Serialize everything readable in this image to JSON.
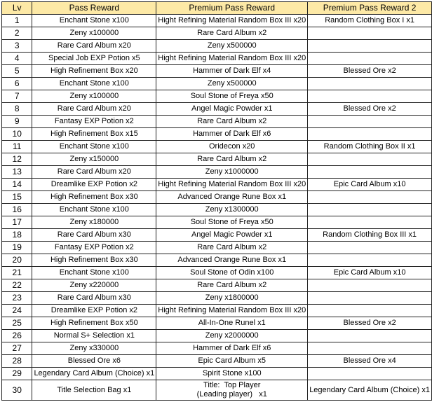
{
  "header": {
    "color": "#fde9a6",
    "columns": [
      "Lv",
      "Pass Reward",
      "Premium Pass Reward",
      "Premium Pass Reward 2"
    ]
  },
  "rows": [
    [
      "1",
      "Enchant Stone x100",
      "Hight Refining Material Random Box III x20",
      "Random Clothing Box I x1"
    ],
    [
      "2",
      "Zeny x100000",
      "Rare Card Album x2",
      ""
    ],
    [
      "3",
      "Rare Card Album x20",
      "Zeny x500000",
      ""
    ],
    [
      "4",
      "Special Job EXP Potion x5",
      "Hight Refining Material Random Box III x20",
      ""
    ],
    [
      "5",
      "High Refinement Box x20",
      "Hammer of Dark Elf x4",
      "Blessed Ore x2"
    ],
    [
      "6",
      "Enchant Stone x100",
      "Zeny x500000",
      ""
    ],
    [
      "7",
      "Zeny x100000",
      "Soul Stone of Freya x50",
      ""
    ],
    [
      "8",
      "Rare Card Album x20",
      "Angel Magic Powder x1",
      "Blessed Ore x2"
    ],
    [
      "9",
      "Fantasy EXP Potion x2",
      "Rare Card Album x2",
      ""
    ],
    [
      "10",
      "High Refinement Box x15",
      "Hammer of Dark Elf x6",
      ""
    ],
    [
      "11",
      "Enchant Stone x100",
      "Oridecon x20",
      "Random Clothing Box II x1"
    ],
    [
      "12",
      "Zeny x150000",
      "Rare Card Album x2",
      ""
    ],
    [
      "13",
      "Rare Card Album x20",
      "Zeny x1000000",
      ""
    ],
    [
      "14",
      "Dreamlike EXP Potion x2",
      "Hight Refining Material Random Box III x20",
      "Epic Card Album x10"
    ],
    [
      "15",
      "High Refinement Box x30",
      "Advanced Orange Rune Box x1",
      ""
    ],
    [
      "16",
      "Enchant Stone x100",
      "Zeny x1300000",
      ""
    ],
    [
      "17",
      "Zeny x180000",
      "Soul Stone of Freya x50",
      ""
    ],
    [
      "18",
      "Rare Card Album x30",
      "Angel Magic Powder x1",
      "Random Clothing Box III x1"
    ],
    [
      "19",
      "Fantasy EXP Potion x2",
      "Rare Card Album x2",
      ""
    ],
    [
      "20",
      "High Refinement Box x30",
      "Advanced Orange Rune Box x1",
      ""
    ],
    [
      "21",
      "Enchant Stone x100",
      "Soul Stone of Odin x100",
      "Epic Card Album x10"
    ],
    [
      "22",
      "Zeny x220000",
      "Rare Card Album x2",
      ""
    ],
    [
      "23",
      "Rare Card Album x30",
      "Zeny x1800000",
      ""
    ],
    [
      "24",
      "Dreamlike EXP Potion x2",
      "Hight Refining Material Random Box III x20",
      ""
    ],
    [
      "25",
      "High Refinement Box x50",
      "All-In-One Runel x1",
      "Blessed Ore x2"
    ],
    [
      "26",
      "Normal S+ Selection x1",
      "Zeny x2000000",
      ""
    ],
    [
      "27",
      "Zeny x330000",
      "Hammer of Dark Elf x6",
      ""
    ],
    [
      "28",
      "Blessed Ore x6",
      "Epic Card Album x5",
      "Blessed Ore x4"
    ],
    [
      "29",
      "Legendary Card Album (Choice) x1",
      "Spirit Stone x100",
      ""
    ]
  ],
  "last_row": {
    "lv": "30",
    "pass": "Title Selection Bag x1",
    "premium_line1": "Title:  Top Player",
    "premium_line2": "(Leading player)   x1",
    "premium2": "Legendary Card Album (Choice) x1"
  }
}
